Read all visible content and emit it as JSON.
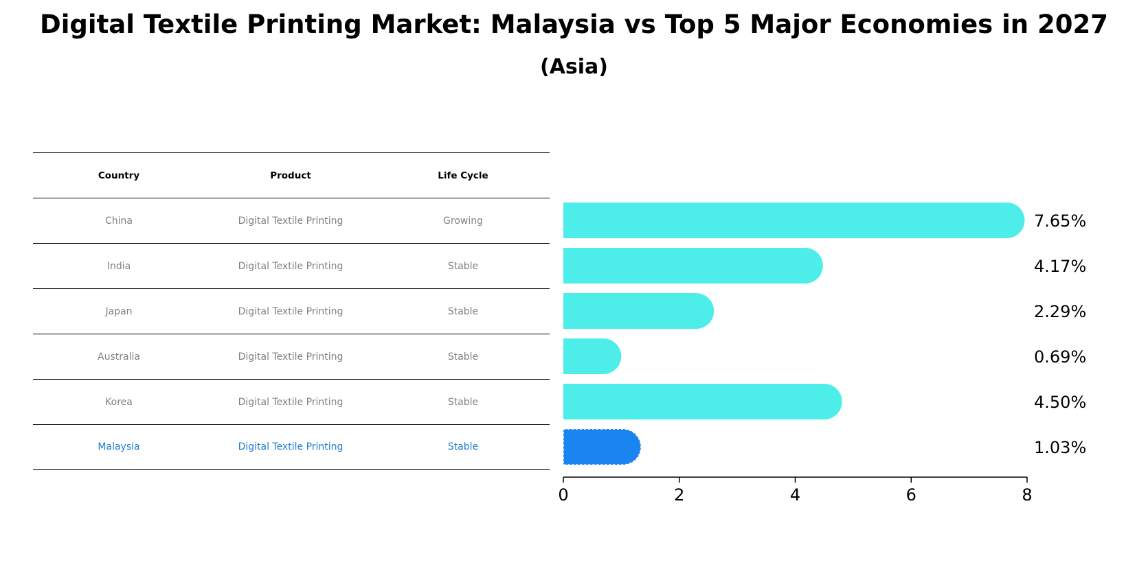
{
  "title": "Digital Textile Printing Market: Malaysia vs Top 5 Major Economies in 2027",
  "subtitle": "(Asia)",
  "table": {
    "headers": [
      "Country",
      "Product",
      "Life Cycle"
    ],
    "rows": [
      {
        "country": "China",
        "product": "Digital Textile Printing",
        "life_cycle": "Growing"
      },
      {
        "country": "India",
        "product": "Digital Textile Printing",
        "life_cycle": "Stable"
      },
      {
        "country": "Japan",
        "product": "Digital Textile Printing",
        "life_cycle": "Stable"
      },
      {
        "country": "Australia",
        "product": "Digital Textile Printing",
        "life_cycle": "Stable"
      },
      {
        "country": "Korea",
        "product": "Digital Textile Printing",
        "life_cycle": "Stable"
      },
      {
        "country": "Malaysia",
        "product": "Digital Textile Printing",
        "life_cycle": "Stable"
      }
    ]
  },
  "chart_data": {
    "type": "bar",
    "orientation": "horizontal",
    "categories": [
      "China",
      "India",
      "Japan",
      "Australia",
      "Korea",
      "Malaysia"
    ],
    "values": [
      7.65,
      4.17,
      2.29,
      0.69,
      4.5,
      1.03
    ],
    "value_labels": [
      "7.65%",
      "4.17%",
      "2.29%",
      "0.69%",
      "4.50%",
      "1.03%"
    ],
    "xlim": [
      0,
      8
    ],
    "xticks": [
      0,
      2,
      4,
      6,
      8
    ],
    "grid": false,
    "colors": {
      "default": "#4DEEEA",
      "highlight": "#1A85F0"
    },
    "highlight_category": "Malaysia"
  }
}
